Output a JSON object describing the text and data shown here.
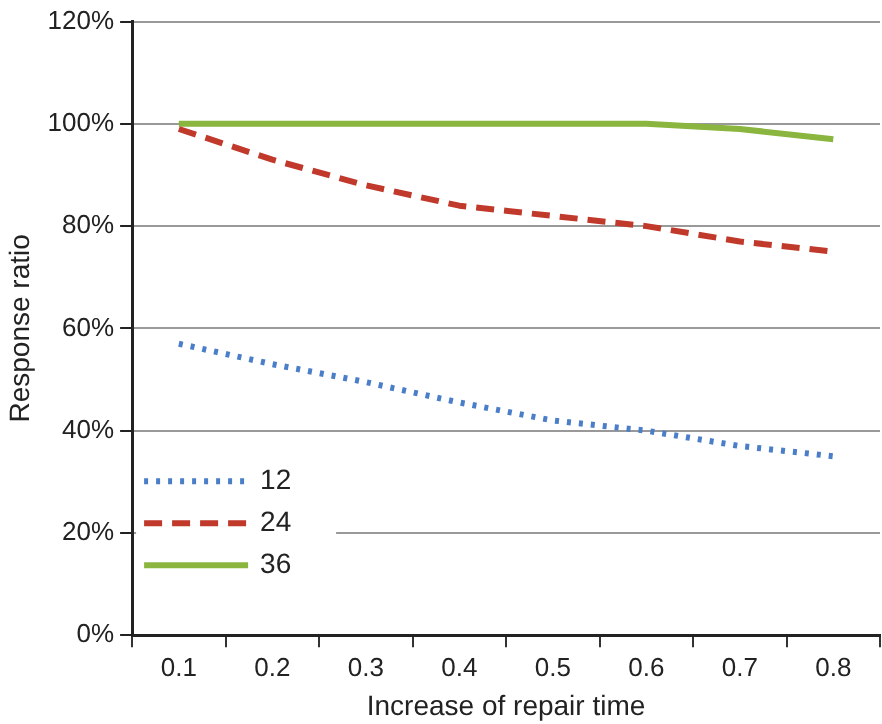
{
  "chart_data": {
    "type": "line",
    "xlabel": "Increase of repair time",
    "ylabel": "Response ratio",
    "categories": [
      "0.1",
      "0.2",
      "0.3",
      "0.4",
      "0.5",
      "0.6",
      "0.7",
      "0.8"
    ],
    "ylim": [
      0,
      120
    ],
    "yticks": [
      {
        "value": 0,
        "label": "0%"
      },
      {
        "value": 20,
        "label": "20%"
      },
      {
        "value": 40,
        "label": "40%"
      },
      {
        "value": 60,
        "label": "60%"
      },
      {
        "value": 80,
        "label": "80%"
      },
      {
        "value": 100,
        "label": "100%"
      },
      {
        "value": 120,
        "label": "120%"
      }
    ],
    "grid": "y",
    "legend": "bottom left",
    "marker": "none",
    "series": [
      {
        "name": "12",
        "color": "#4a7ec8",
        "line_style": "dotted",
        "values": [
          57,
          53,
          49.5,
          45.5,
          42,
          40,
          37,
          35
        ]
      },
      {
        "name": "24",
        "color": "#c0392b",
        "line_style": "dashed",
        "values": [
          99,
          93,
          88,
          84,
          82,
          80,
          77,
          75
        ]
      },
      {
        "name": "36",
        "color": "#8ab53f",
        "line_style": "solid",
        "values": [
          100,
          100,
          100,
          100,
          100,
          100,
          99,
          97
        ]
      }
    ]
  }
}
